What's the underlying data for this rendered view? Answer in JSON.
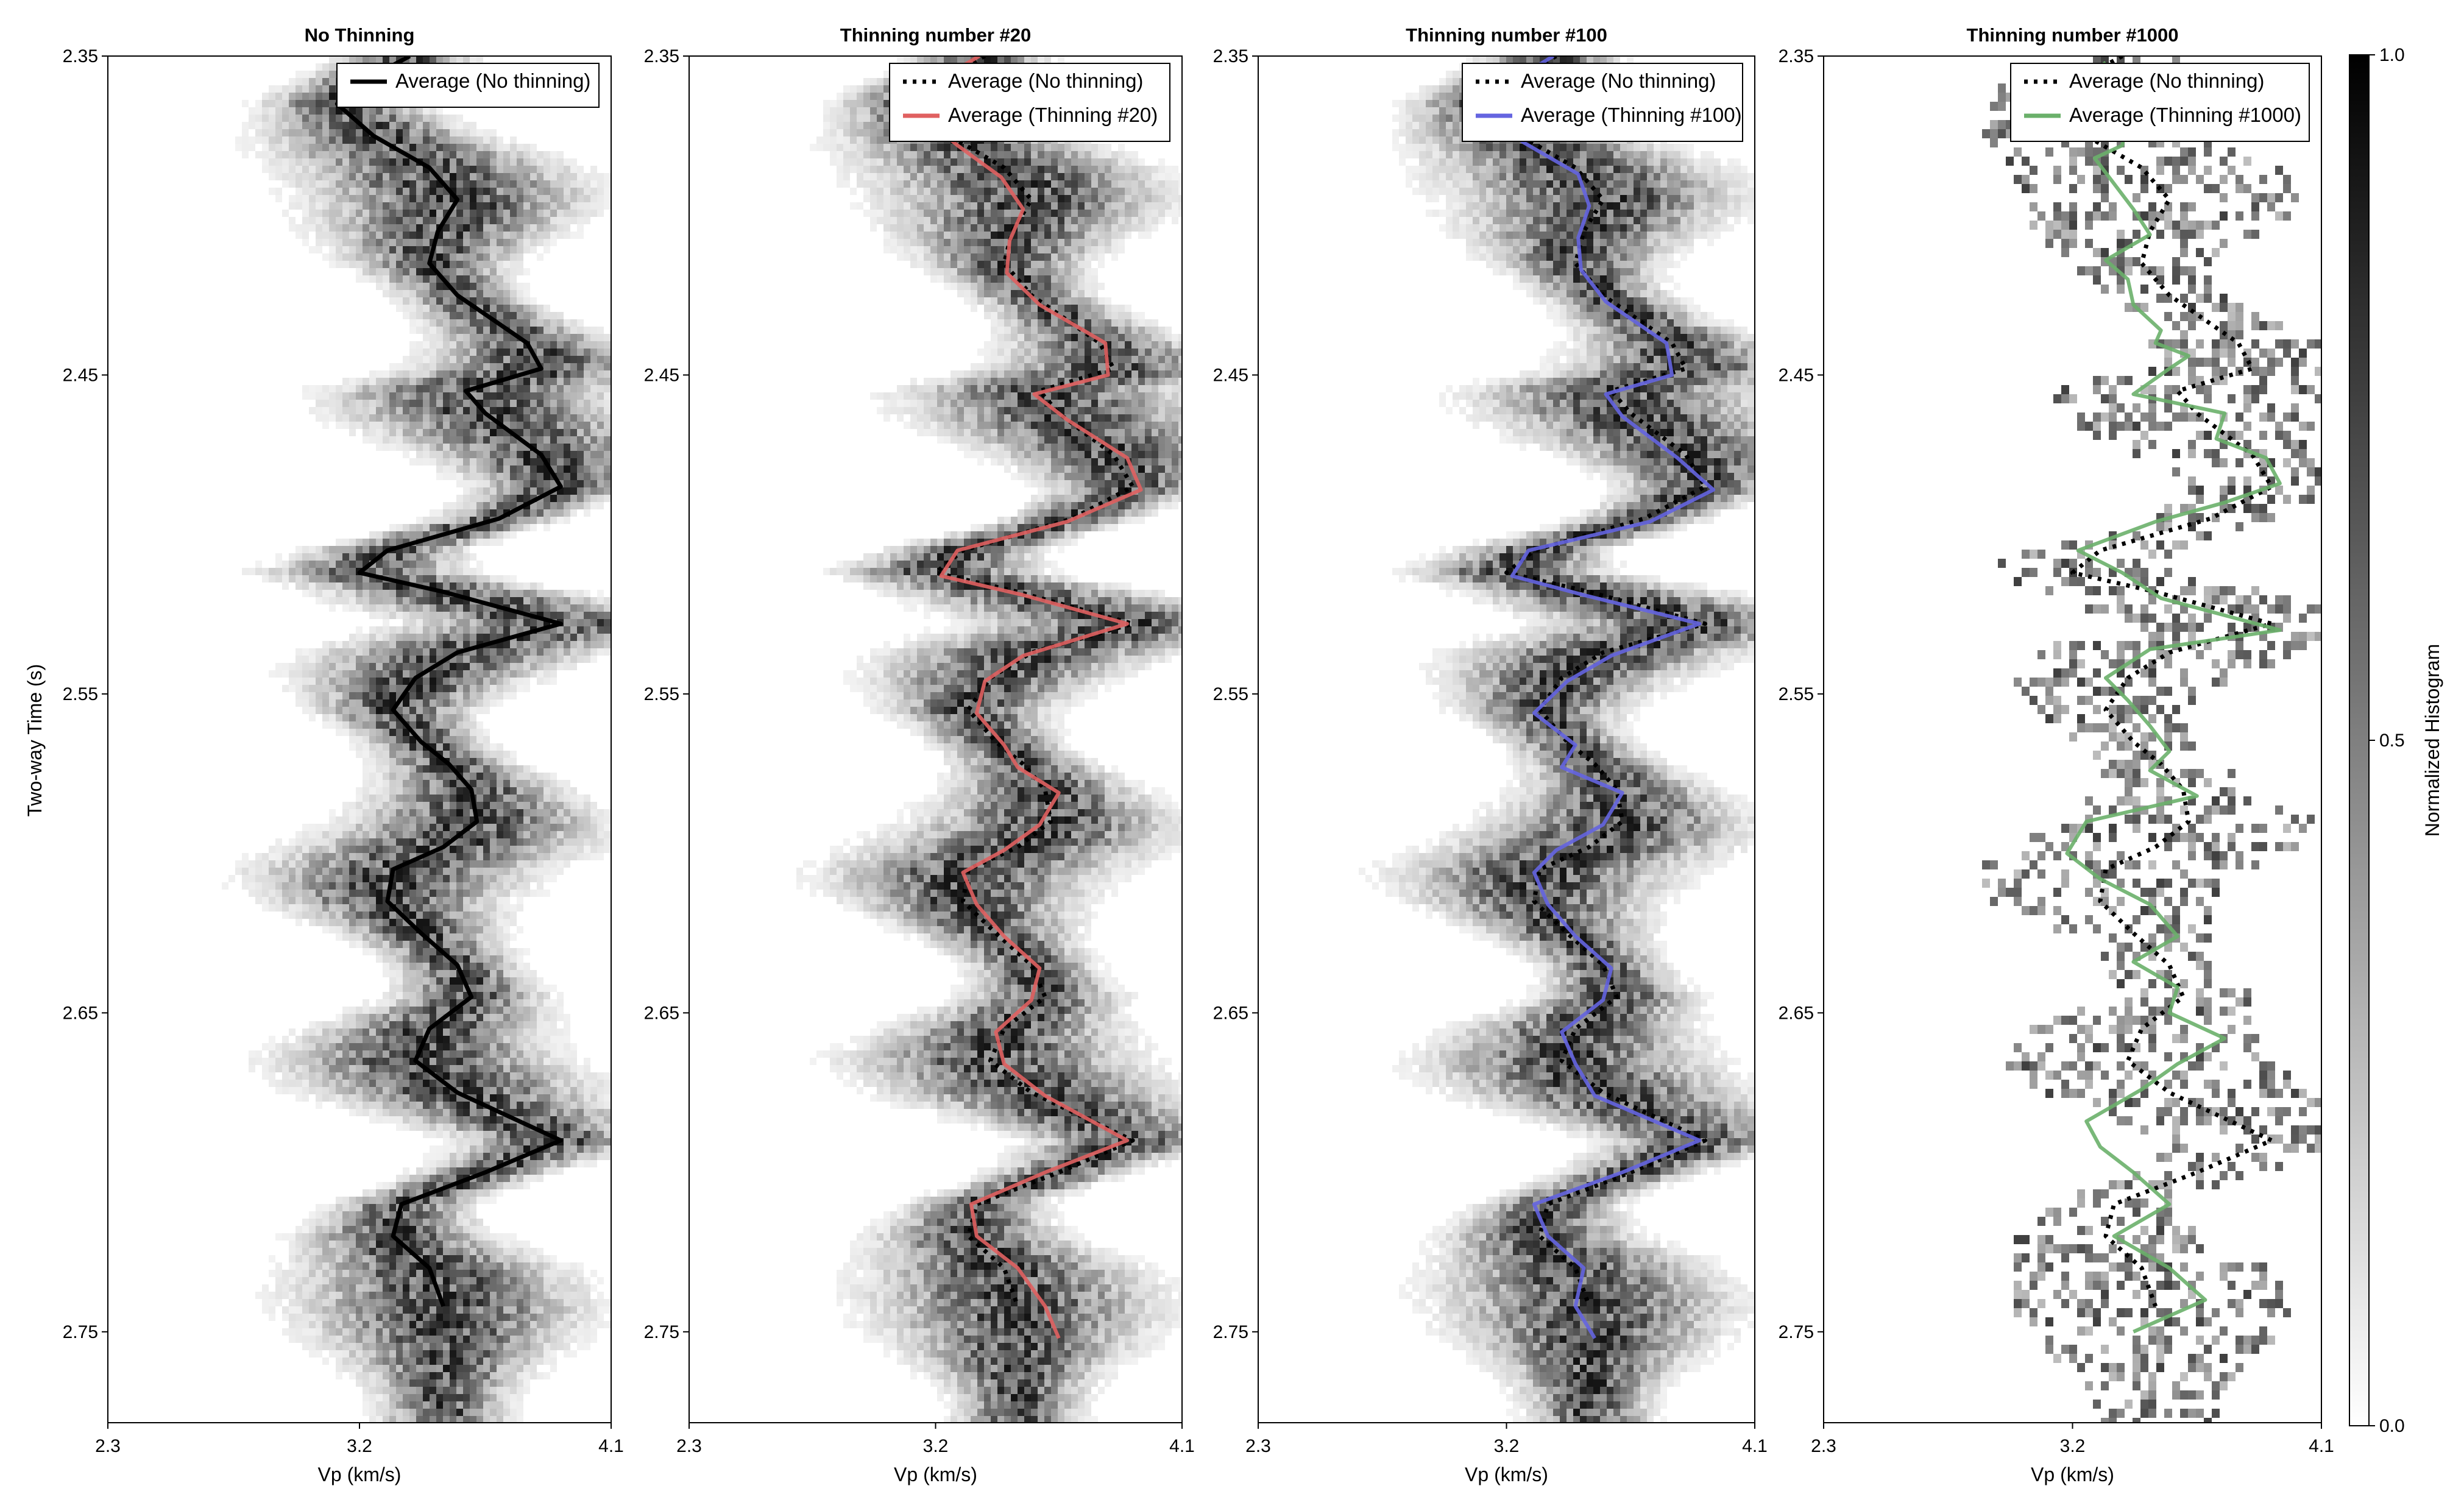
{
  "figure": {
    "ylabel": "Two-way Time (s)",
    "colorbar_label": "Normalized Histogram",
    "colorbar_ticks": [
      "0.0",
      "0.5",
      "1.0"
    ]
  },
  "chart_data": [
    {
      "type": "heatmap",
      "title": "No Thinning",
      "xlabel": "Vp (km/s)",
      "ylabel": "Two-way Time (s)",
      "xlim": [
        2.3,
        4.1
      ],
      "ylim": [
        2.35,
        2.78
      ],
      "xticks": [
        "2.3",
        "3.2",
        "4.1"
      ],
      "yticks": [
        "2.35",
        "2.45",
        "2.55",
        "2.65",
        "2.75"
      ],
      "legend_position": "top-right",
      "colormap": "white-to-black, normalized histogram 0-1",
      "series": [
        {
          "name": "Average (No thinning)",
          "color": "#000000",
          "style": "solid",
          "x": [
            3.38,
            3.17,
            3.12,
            3.25,
            3.45,
            3.55,
            3.48,
            3.45,
            3.55,
            3.8,
            3.85,
            3.58,
            3.65,
            3.85,
            3.92,
            3.7,
            3.3,
            3.2,
            3.5,
            3.92,
            3.55,
            3.4,
            3.32,
            3.42,
            3.52,
            3.6,
            3.62,
            3.5,
            3.32,
            3.3,
            3.42,
            3.55,
            3.6,
            3.45,
            3.4,
            3.55,
            3.92,
            3.65,
            3.35,
            3.32,
            3.45,
            3.5
          ],
          "y": [
            2.35,
            2.36,
            2.365,
            2.375,
            2.385,
            2.395,
            2.405,
            2.415,
            2.425,
            2.44,
            2.448,
            2.455,
            2.462,
            2.475,
            2.485,
            2.495,
            2.505,
            2.512,
            2.518,
            2.528,
            2.537,
            2.545,
            2.555,
            2.565,
            2.572,
            2.58,
            2.59,
            2.598,
            2.605,
            2.615,
            2.625,
            2.635,
            2.645,
            2.655,
            2.665,
            2.675,
            2.69,
            2.7,
            2.71,
            2.72,
            2.73,
            2.742
          ]
        }
      ]
    },
    {
      "type": "heatmap",
      "title": "Thinning number #20",
      "xlabel": "Vp (km/s)",
      "xlim": [
        2.3,
        4.1
      ],
      "ylim": [
        2.35,
        2.78
      ],
      "xticks": [
        "2.3",
        "3.2",
        "4.1"
      ],
      "yticks": [
        "2.35",
        "2.45",
        "2.55",
        "2.65",
        "2.75"
      ],
      "legend_position": "top-right",
      "series": [
        {
          "name": "Average (No thinning)",
          "color": "#000000",
          "style": "dotted",
          "x": [
            3.38,
            3.17,
            3.12,
            3.25,
            3.45,
            3.55,
            3.48,
            3.45,
            3.55,
            3.8,
            3.85,
            3.58,
            3.65,
            3.85,
            3.92,
            3.7,
            3.3,
            3.2,
            3.5,
            3.92,
            3.55,
            3.4,
            3.32,
            3.42,
            3.52,
            3.6,
            3.62,
            3.5,
            3.32,
            3.3,
            3.42,
            3.55,
            3.6,
            3.45,
            3.4,
            3.55,
            3.92,
            3.65,
            3.35,
            3.32,
            3.45,
            3.5
          ],
          "y": [
            2.35,
            2.36,
            2.365,
            2.375,
            2.385,
            2.395,
            2.405,
            2.415,
            2.425,
            2.44,
            2.448,
            2.455,
            2.462,
            2.475,
            2.485,
            2.495,
            2.505,
            2.512,
            2.518,
            2.528,
            2.537,
            2.545,
            2.555,
            2.565,
            2.572,
            2.58,
            2.59,
            2.598,
            2.605,
            2.615,
            2.625,
            2.635,
            2.645,
            2.655,
            2.665,
            2.675,
            2.69,
            2.7,
            2.71,
            2.72,
            2.73,
            2.742
          ]
        },
        {
          "name": "Average (Thinning #20)",
          "color": "#e06060",
          "style": "solid",
          "x": [
            3.36,
            3.16,
            3.14,
            3.28,
            3.44,
            3.52,
            3.47,
            3.46,
            3.58,
            3.82,
            3.83,
            3.56,
            3.68,
            3.9,
            3.95,
            3.68,
            3.28,
            3.22,
            3.52,
            3.9,
            3.52,
            3.38,
            3.35,
            3.45,
            3.5,
            3.65,
            3.58,
            3.45,
            3.3,
            3.35,
            3.45,
            3.58,
            3.55,
            3.42,
            3.45,
            3.6,
            3.9,
            3.6,
            3.33,
            3.35,
            3.5,
            3.6,
            3.65
          ],
          "y": [
            2.35,
            2.36,
            2.368,
            2.378,
            2.388,
            2.398,
            2.408,
            2.418,
            2.428,
            2.44,
            2.45,
            2.456,
            2.464,
            2.476,
            2.486,
            2.496,
            2.505,
            2.513,
            2.519,
            2.528,
            2.538,
            2.546,
            2.556,
            2.566,
            2.573,
            2.581,
            2.591,
            2.599,
            2.606,
            2.616,
            2.626,
            2.636,
            2.646,
            2.656,
            2.666,
            2.676,
            2.69,
            2.7,
            2.71,
            2.72,
            2.73,
            2.742,
            2.752
          ]
        }
      ]
    },
    {
      "type": "heatmap",
      "title": "Thinning number #100",
      "xlabel": "Vp (km/s)",
      "xlim": [
        2.3,
        4.1
      ],
      "ylim": [
        2.35,
        2.78
      ],
      "xticks": [
        "2.3",
        "3.2",
        "4.1"
      ],
      "yticks": [
        "2.35",
        "2.45",
        "2.55",
        "2.65",
        "2.75"
      ],
      "legend_position": "top-right",
      "series": [
        {
          "name": "Average (No thinning)",
          "color": "#000000",
          "style": "dotted",
          "x": [
            3.38,
            3.17,
            3.12,
            3.25,
            3.45,
            3.55,
            3.48,
            3.45,
            3.55,
            3.8,
            3.85,
            3.58,
            3.65,
            3.85,
            3.92,
            3.7,
            3.3,
            3.2,
            3.5,
            3.92,
            3.55,
            3.4,
            3.32,
            3.42,
            3.52,
            3.6,
            3.62,
            3.5,
            3.32,
            3.3,
            3.42,
            3.55,
            3.6,
            3.45,
            3.4,
            3.55,
            3.92,
            3.65,
            3.35,
            3.32,
            3.45,
            3.5
          ],
          "y": [
            2.35,
            2.36,
            2.365,
            2.375,
            2.385,
            2.395,
            2.405,
            2.415,
            2.425,
            2.44,
            2.448,
            2.455,
            2.462,
            2.475,
            2.485,
            2.495,
            2.505,
            2.512,
            2.518,
            2.528,
            2.537,
            2.545,
            2.555,
            2.565,
            2.572,
            2.58,
            2.59,
            2.598,
            2.605,
            2.615,
            2.625,
            2.635,
            2.645,
            2.655,
            2.665,
            2.675,
            2.69,
            2.7,
            2.71,
            2.72,
            2.73,
            2.742
          ]
        },
        {
          "name": "Average (Thinning #100)",
          "color": "#6464e0",
          "style": "solid",
          "x": [
            3.37,
            3.18,
            3.13,
            3.26,
            3.46,
            3.5,
            3.46,
            3.47,
            3.56,
            3.78,
            3.8,
            3.56,
            3.62,
            3.82,
            3.95,
            3.72,
            3.28,
            3.22,
            3.48,
            3.9,
            3.58,
            3.42,
            3.3,
            3.45,
            3.4,
            3.62,
            3.55,
            3.38,
            3.3,
            3.35,
            3.45,
            3.58,
            3.55,
            3.4,
            3.45,
            3.52,
            3.9,
            3.62,
            3.3,
            3.35,
            3.48,
            3.45,
            3.52
          ],
          "y": [
            2.35,
            2.36,
            2.367,
            2.377,
            2.387,
            2.397,
            2.407,
            2.417,
            2.427,
            2.44,
            2.45,
            2.456,
            2.463,
            2.476,
            2.486,
            2.496,
            2.505,
            2.513,
            2.519,
            2.528,
            2.538,
            2.546,
            2.556,
            2.566,
            2.573,
            2.581,
            2.591,
            2.599,
            2.606,
            2.616,
            2.626,
            2.636,
            2.646,
            2.656,
            2.666,
            2.676,
            2.69,
            2.7,
            2.71,
            2.72,
            2.73,
            2.742,
            2.752
          ]
        }
      ]
    },
    {
      "type": "heatmap",
      "title": "Thinning number #1000",
      "xlabel": "Vp (km/s)",
      "xlim": [
        2.3,
        4.1
      ],
      "ylim": [
        2.35,
        2.78
      ],
      "xticks": [
        "2.3",
        "3.2",
        "4.1"
      ],
      "yticks": [
        "2.35",
        "2.45",
        "2.55",
        "2.65",
        "2.75"
      ],
      "legend_position": "top-right",
      "series": [
        {
          "name": "Average (No thinning)",
          "color": "#000000",
          "style": "dotted",
          "x": [
            3.38,
            3.17,
            3.12,
            3.25,
            3.45,
            3.55,
            3.48,
            3.45,
            3.55,
            3.8,
            3.85,
            3.58,
            3.65,
            3.85,
            3.92,
            3.7,
            3.3,
            3.2,
            3.5,
            3.92,
            3.55,
            3.4,
            3.32,
            3.42,
            3.52,
            3.6,
            3.62,
            3.5,
            3.32,
            3.3,
            3.42,
            3.55,
            3.6,
            3.45,
            3.4,
            3.55,
            3.92,
            3.65,
            3.35,
            3.32,
            3.45,
            3.5
          ],
          "y": [
            2.35,
            2.36,
            2.365,
            2.375,
            2.385,
            2.395,
            2.405,
            2.415,
            2.425,
            2.44,
            2.448,
            2.455,
            2.462,
            2.475,
            2.485,
            2.495,
            2.505,
            2.512,
            2.518,
            2.528,
            2.537,
            2.545,
            2.555,
            2.565,
            2.572,
            2.58,
            2.59,
            2.598,
            2.605,
            2.615,
            2.625,
            2.635,
            2.645,
            2.655,
            2.665,
            2.675,
            2.69,
            2.7,
            2.71,
            2.72,
            2.73,
            2.742
          ]
        },
        {
          "name": "Average (Thinning #1000)",
          "color": "#6ab06a",
          "style": "solid",
          "x": [
            3.32,
            3.2,
            3.4,
            3.38,
            3.28,
            3.35,
            3.42,
            3.48,
            3.32,
            3.4,
            3.42,
            3.52,
            3.5,
            3.62,
            3.55,
            3.42,
            3.75,
            3.72,
            3.9,
            3.95,
            3.75,
            3.5,
            3.22,
            3.38,
            3.52,
            3.95,
            3.48,
            3.32,
            3.4,
            3.48,
            3.55,
            3.48,
            3.65,
            3.25,
            3.18,
            3.3,
            3.48,
            3.58,
            3.42,
            3.58,
            3.55,
            3.75,
            3.58,
            3.45,
            3.25,
            3.3,
            3.42,
            3.55,
            3.35,
            3.55,
            3.68,
            3.42
          ],
          "y": [
            2.352,
            2.36,
            2.368,
            2.378,
            2.382,
            2.39,
            2.398,
            2.406,
            2.414,
            2.42,
            2.428,
            2.436,
            2.44,
            2.444,
            2.448,
            2.456,
            2.462,
            2.47,
            2.476,
            2.484,
            2.49,
            2.496,
            2.505,
            2.512,
            2.52,
            2.53,
            2.536,
            2.545,
            2.552,
            2.56,
            2.568,
            2.574,
            2.582,
            2.59,
            2.6,
            2.608,
            2.616,
            2.626,
            2.634,
            2.642,
            2.65,
            2.658,
            2.666,
            2.674,
            2.684,
            2.692,
            2.7,
            2.71,
            2.72,
            2.73,
            2.74,
            2.75
          ]
        }
      ]
    }
  ]
}
